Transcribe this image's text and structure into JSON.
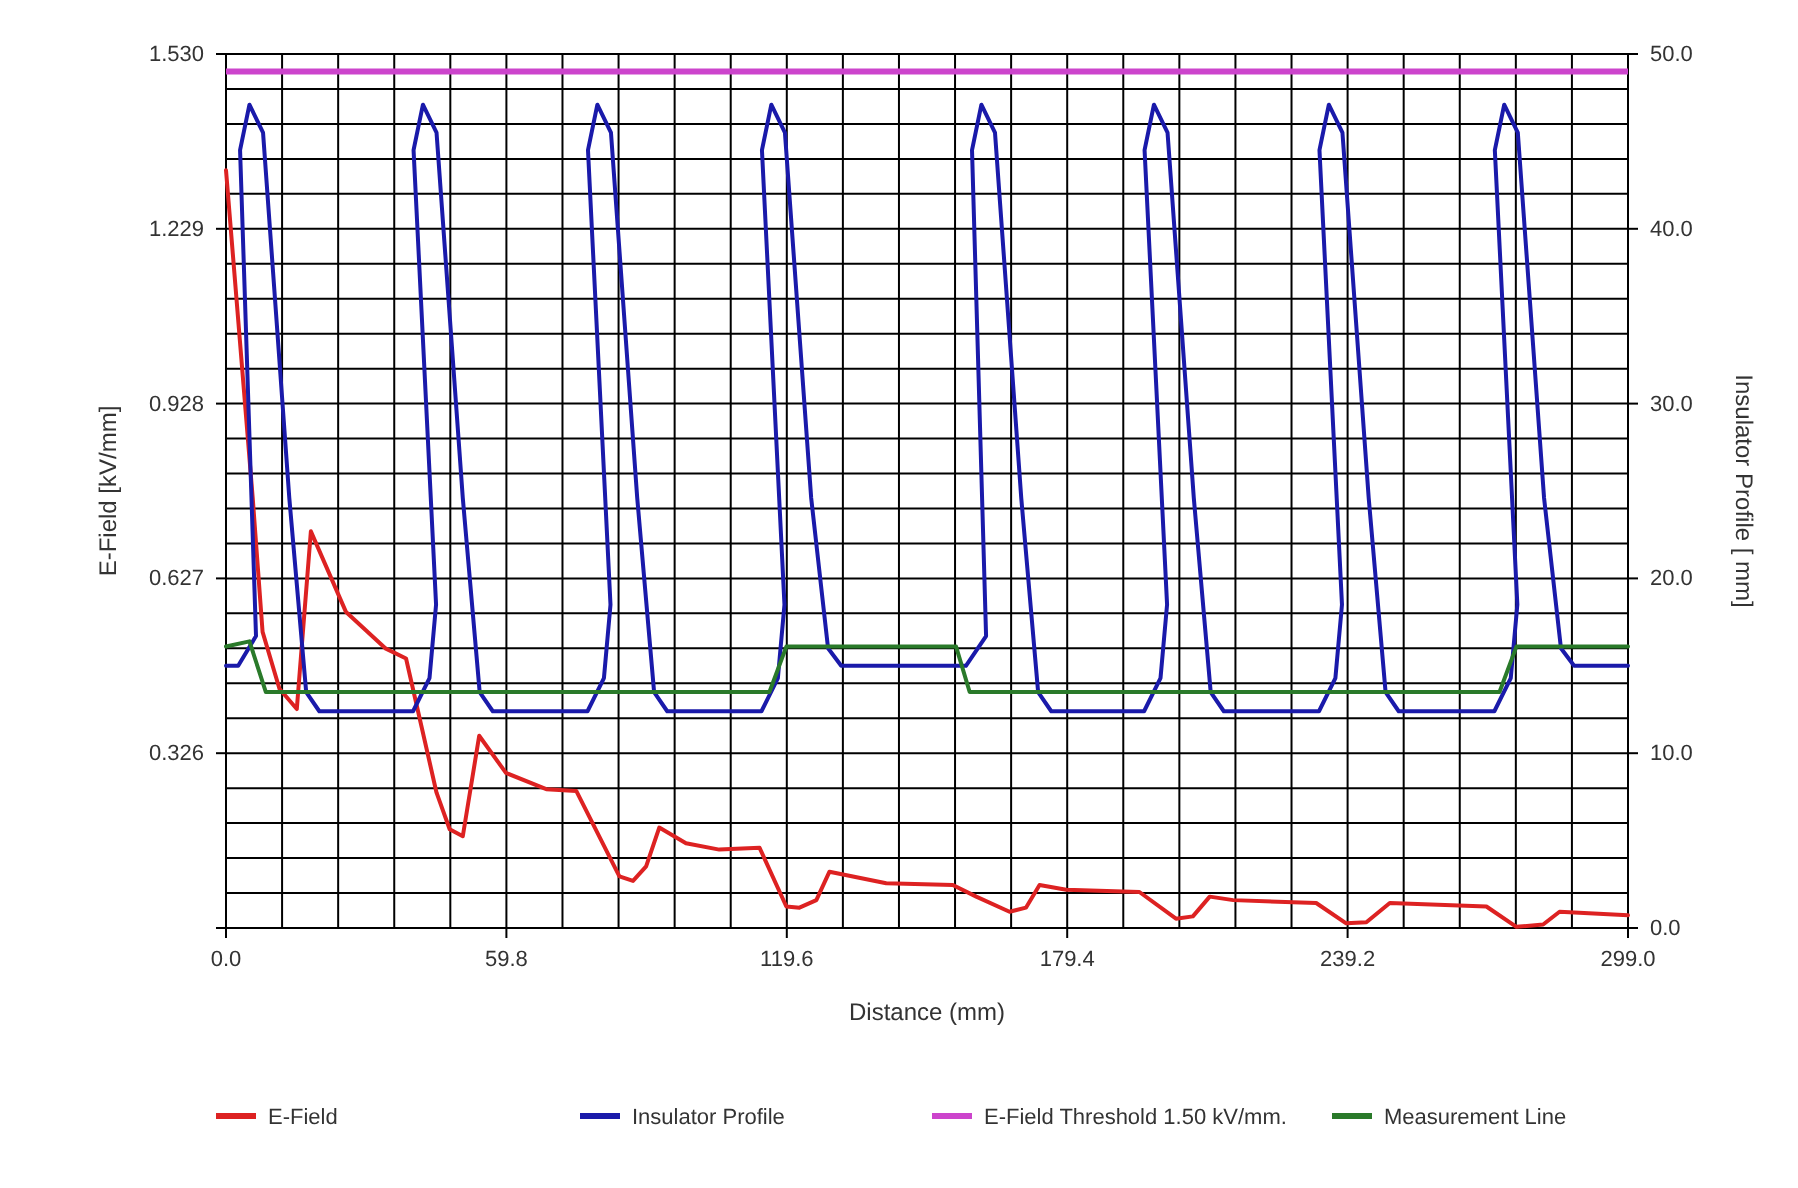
{
  "chart_data": {
    "type": "line",
    "xlabel": "Distance (mm)",
    "ylabel": "E-Field  [kV/mm]",
    "y2label": "Insulator Profile [ mm]",
    "xlim": [
      0,
      299
    ],
    "ylim": [
      0.025,
      1.53
    ],
    "y2lim": [
      0,
      50
    ],
    "xticks": [
      {
        "value": 0,
        "label": "0.0"
      },
      {
        "value": 11.96,
        "label": null
      },
      {
        "value": 23.92,
        "label": null
      },
      {
        "value": 35.88,
        "label": null
      },
      {
        "value": 47.84,
        "label": null
      },
      {
        "value": 59.8,
        "label": "59.8"
      },
      {
        "value": 71.76,
        "label": null
      },
      {
        "value": 83.72,
        "label": null
      },
      {
        "value": 95.68,
        "label": null
      },
      {
        "value": 107.64,
        "label": null
      },
      {
        "value": 119.6,
        "label": "119.6"
      },
      {
        "value": 131.56,
        "label": null
      },
      {
        "value": 143.52,
        "label": null
      },
      {
        "value": 155.48,
        "label": null
      },
      {
        "value": 167.44,
        "label": null
      },
      {
        "value": 179.4,
        "label": "179.4"
      },
      {
        "value": 191.36,
        "label": null
      },
      {
        "value": 203.32,
        "label": null
      },
      {
        "value": 215.28,
        "label": null
      },
      {
        "value": 227.24,
        "label": null
      },
      {
        "value": 239.2,
        "label": "239.2"
      },
      {
        "value": 251.16,
        "label": null
      },
      {
        "value": 263.12,
        "label": null
      },
      {
        "value": 275.08,
        "label": null
      },
      {
        "value": 287.04,
        "label": null
      },
      {
        "value": 299,
        "label": "299.0"
      }
    ],
    "yticks": [
      {
        "value": 0.326,
        "label": "0.326"
      },
      {
        "value": 0.627,
        "label": "0.627"
      },
      {
        "value": 0.928,
        "label": "0.928"
      },
      {
        "value": 1.229,
        "label": "1.229"
      },
      {
        "value": 1.53,
        "label": "1.530"
      }
    ],
    "y2ticks": [
      {
        "value": 0,
        "label": "0.0"
      },
      {
        "value": 2,
        "label": null
      },
      {
        "value": 4,
        "label": null
      },
      {
        "value": 6,
        "label": null
      },
      {
        "value": 8,
        "label": null
      },
      {
        "value": 10,
        "label": "10.0"
      },
      {
        "value": 12,
        "label": null
      },
      {
        "value": 14,
        "label": null
      },
      {
        "value": 16,
        "label": null
      },
      {
        "value": 18,
        "label": null
      },
      {
        "value": 20,
        "label": "20.0"
      },
      {
        "value": 22,
        "label": null
      },
      {
        "value": 24,
        "label": null
      },
      {
        "value": 26,
        "label": null
      },
      {
        "value": 28,
        "label": null
      },
      {
        "value": 30,
        "label": "30.0"
      },
      {
        "value": 32,
        "label": null
      },
      {
        "value": 34,
        "label": null
      },
      {
        "value": 36,
        "label": null
      },
      {
        "value": 38,
        "label": null
      },
      {
        "value": 40,
        "label": "40.0"
      },
      {
        "value": 42,
        "label": null
      },
      {
        "value": 44,
        "label": null
      },
      {
        "value": 46,
        "label": null
      },
      {
        "value": 48,
        "label": null
      },
      {
        "value": 50,
        "label": "50.0"
      }
    ],
    "grid": true,
    "legend": "bottom",
    "marker": "none",
    "line_style": "solid",
    "ref_lines": [
      {
        "axis": "y",
        "value": 1.5,
        "label": "E-Field Threshold 1.50 kV/mm.",
        "color": "#cc44cc"
      }
    ],
    "series": [
      {
        "name": "E-Field",
        "color": "#dd2222",
        "x": [
          0,
          5.7,
          7.8,
          11.4,
          15.1,
          18.1,
          25.6,
          34.1,
          38.4,
          44.9,
          47.7,
          50.5,
          54.0,
          59.7,
          68.3,
          74.7,
          83.9,
          86.8,
          89.6,
          92.4,
          98.1,
          105.2,
          113.8,
          119.5,
          122.3,
          125.9,
          128.7,
          140.8,
          155.0,
          160.0,
          167.1,
          170.6,
          173.5,
          179.2,
          194.8,
          202.6,
          206.2,
          209.8,
          214.8,
          232.5,
          238.9,
          243.2,
          248.2,
          268.8,
          275.2,
          280.9,
          284.4,
          299
        ],
        "values": [
          1.33,
          0.765,
          0.535,
          0.437,
          0.402,
          0.708,
          0.569,
          0.506,
          0.489,
          0.258,
          0.195,
          0.183,
          0.356,
          0.292,
          0.264,
          0.261,
          0.114,
          0.106,
          0.131,
          0.198,
          0.171,
          0.16,
          0.163,
          0.062,
          0.06,
          0.073,
          0.122,
          0.102,
          0.099,
          0.079,
          0.053,
          0.06,
          0.099,
          0.091,
          0.087,
          0.041,
          0.045,
          0.079,
          0.073,
          0.068,
          0.033,
          0.035,
          0.068,
          0.062,
          0.027,
          0.031,
          0.053,
          0.047
        ]
      },
      {
        "name": "Insulator Profile",
        "color": "#1a1aaa",
        "axis": "y2",
        "x": [
          0,
          2.6,
          6.4,
          3.0,
          5.0,
          7.9,
          13.5,
          17.1,
          19.9,
          39.9,
          43.4,
          44.8,
          40.0,
          42.0,
          44.9,
          50.5,
          54.1,
          56.9,
          77.1,
          80.6,
          82.0,
          77.2,
          79.2,
          82.1,
          87.7,
          91.3,
          94.1,
          114.2,
          117.7,
          119.1,
          114.3,
          116.3,
          119.2,
          124.8,
          128.4,
          131.2,
          157.8,
          162.1,
          159.1,
          161.1,
          164.0,
          169.6,
          173.2,
          176.0,
          195.8,
          199.3,
          200.7,
          195.9,
          197.9,
          200.8,
          206.4,
          210.0,
          212.8,
          233.1,
          236.6,
          238.0,
          233.2,
          235.2,
          238.1,
          243.7,
          247.3,
          250.1,
          270.5,
          274.0,
          275.4,
          270.6,
          272.6,
          275.5,
          281.1,
          284.7,
          287.5,
          299
        ],
        "values": [
          15,
          15,
          16.7,
          44.5,
          47.1,
          45.5,
          24.6,
          13.5,
          12.4,
          12.4,
          14.3,
          18.5,
          44.5,
          47.1,
          45.5,
          24.6,
          13.5,
          12.4,
          12.4,
          14.3,
          18.5,
          44.5,
          47.1,
          45.5,
          24.6,
          13.5,
          12.4,
          12.4,
          14.3,
          18.5,
          44.5,
          47.1,
          45.5,
          24.6,
          16.0,
          15.0,
          15.0,
          16.7,
          44.5,
          47.1,
          45.5,
          24.6,
          13.5,
          12.4,
          12.4,
          14.3,
          18.5,
          44.5,
          47.1,
          45.5,
          24.6,
          13.5,
          12.4,
          12.4,
          14.3,
          18.5,
          44.5,
          47.1,
          45.5,
          24.6,
          13.5,
          12.4,
          12.4,
          14.3,
          18.5,
          44.5,
          47.1,
          45.5,
          24.6,
          16.0,
          15.0,
          15.0
        ]
      },
      {
        "name": "Measurement Line",
        "color": "#2a7a2a",
        "axis": "y2",
        "x": [
          0,
          5.0,
          8.5,
          115.9,
          119.5,
          155.7,
          158.6,
          271.6,
          275.2,
          299
        ],
        "values": [
          16.1,
          16.4,
          13.5,
          13.5,
          16.1,
          16.1,
          13.5,
          13.5,
          16.1,
          16.1
        ]
      }
    ]
  }
}
